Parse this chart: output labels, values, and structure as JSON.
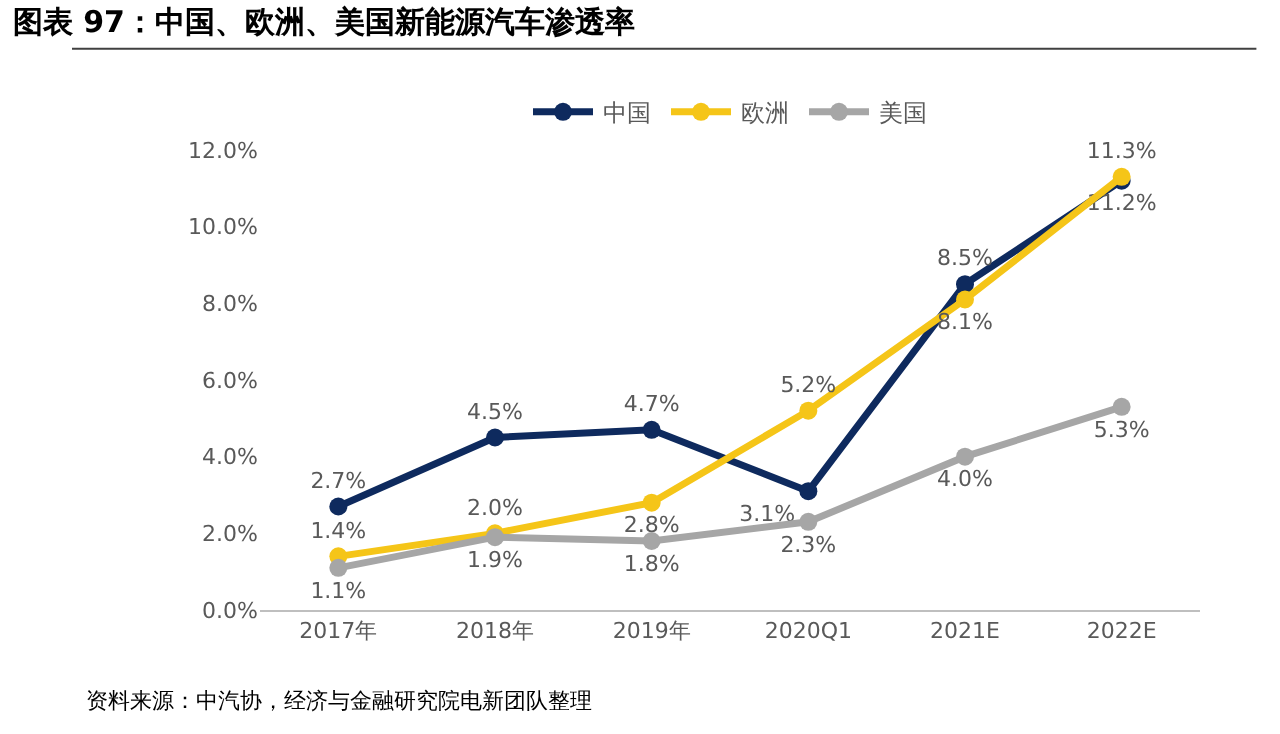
{
  "chart_data": {
    "type": "line",
    "title": "图表 97：中国、欧洲、美国新能源汽车渗透率",
    "categories": [
      "2017年",
      "2018年",
      "2019年",
      "2020Q1",
      "2021E",
      "2022E"
    ],
    "series": [
      {
        "name": "中国",
        "color": "#0e2a5e",
        "values": [
          2.7,
          4.5,
          4.7,
          3.1,
          8.5,
          11.2
        ],
        "value_labels": [
          "2.7%",
          "4.5%",
          "4.7%",
          "3.1%",
          "8.5%",
          "11.2%"
        ]
      },
      {
        "name": "欧洲",
        "color": "#f5c518",
        "values": [
          1.4,
          2.0,
          2.8,
          5.2,
          8.1,
          11.3
        ],
        "value_labels": [
          "1.4%",
          "2.0%",
          "2.8%",
          "5.2%",
          "8.1%",
          "11.3%"
        ]
      },
      {
        "name": "美国",
        "color": "#a6a6a6",
        "values": [
          1.1,
          1.9,
          1.8,
          2.3,
          4.0,
          5.3
        ],
        "value_labels": [
          "1.1%",
          "1.9%",
          "1.8%",
          "2.3%",
          "4.0%",
          "5.3%"
        ]
      }
    ],
    "ylim": [
      0,
      12
    ],
    "yticks": [
      {
        "value": 0,
        "label": "0.0%"
      },
      {
        "value": 2,
        "label": "2.0%"
      },
      {
        "value": 4,
        "label": "4.0%"
      },
      {
        "value": 6,
        "label": "6.0%"
      },
      {
        "value": 8,
        "label": "8.0%"
      },
      {
        "value": 10,
        "label": "10.0%"
      },
      {
        "value": 12,
        "label": "12.0%"
      }
    ],
    "grid": false,
    "legend": "top",
    "marker": "circle",
    "line_style": "solid",
    "annotations": [
      "资料来源：中汽协，经济与金融研究院电新团队整理"
    ]
  }
}
